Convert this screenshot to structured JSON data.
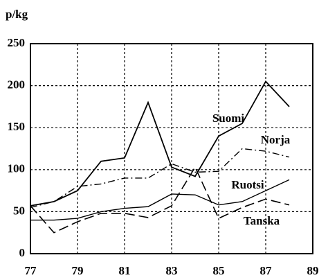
{
  "chart_data": {
    "type": "line",
    "y_label": "p/kg",
    "x": [
      77,
      78,
      79,
      80,
      81,
      82,
      83,
      84,
      85,
      86,
      87,
      88
    ],
    "series": [
      {
        "name": "Suomi",
        "color": "#000000",
        "linestyle": "solid",
        "values": [
          57,
          62,
          75,
          110,
          114,
          180,
          103,
          92,
          140,
          155,
          205,
          175
        ]
      },
      {
        "name": "Norja",
        "color": "#000000",
        "linestyle": "dashdot",
        "values": [
          55,
          62,
          80,
          83,
          90,
          90,
          107,
          97,
          98,
          125,
          122,
          115
        ]
      },
      {
        "name": "Ruotsi",
        "color": "#000000",
        "linestyle": "solid",
        "values": [
          40,
          40,
          42,
          50,
          54,
          56,
          71,
          70,
          58,
          62,
          75,
          88
        ]
      },
      {
        "name": "Tanska",
        "color": "#000000",
        "linestyle": "dashed",
        "values": [
          57,
          25,
          38,
          48,
          48,
          43,
          57,
          103,
          42,
          55,
          65,
          58
        ]
      }
    ],
    "xlim": [
      77,
      89
    ],
    "xticks": [
      77,
      79,
      81,
      83,
      85,
      87,
      89
    ],
    "ylim": [
      0,
      250
    ],
    "yticks": [
      0,
      50,
      100,
      150,
      200,
      250
    ],
    "grid": true
  }
}
